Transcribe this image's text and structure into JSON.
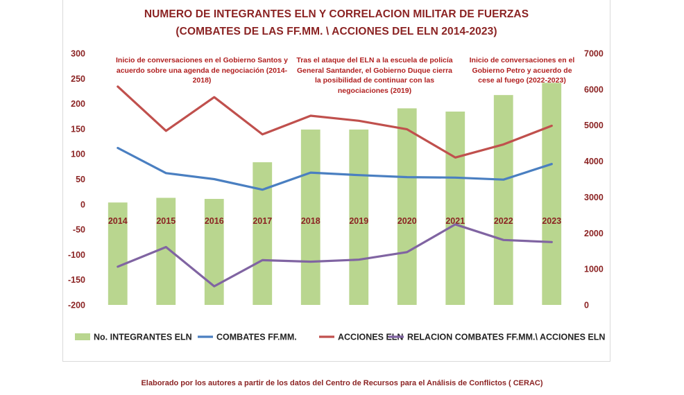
{
  "title_line1": "NUMERO DE INTEGRANTES ELN Y CORRELACION MILITAR DE FUERZAS",
  "title_line2": "(COMBATES DE LAS FF.MM. \\ ACCIONES DEL ELN 2014-2023)",
  "annotations": {
    "a1": "Inicio de conversaciones en el Gobierno Santos  y acuerdo sobre una agenda de negociación (2014-2018)",
    "a2": "Tras el ataque del ELN a la escuela de policía General Santander, el Gobierno Duque cierra la posibilidad de continuar con las negociaciones (2019)",
    "a3": "Inicio de conversaciones en el Gobierno Petro y acuerdo de cese al fuego (2022-2023)"
  },
  "source": "Elaborado por los autores a partir de los datos del Centro de Recursos para el Análisis de Conflictos ( CERAC)",
  "chart_data": {
    "type": "bar",
    "categories": [
      "2014",
      "2015",
      "2016",
      "2017",
      "2018",
      "2019",
      "2020",
      "2021",
      "2022",
      "2023"
    ],
    "y_left": {
      "min": -200,
      "max": 300,
      "step": 50,
      "ticks": [
        "300",
        "250",
        "200",
        "150",
        "100",
        "50",
        "0",
        "-50",
        "-100",
        "-150",
        "-200"
      ]
    },
    "y_right": {
      "min": 0,
      "max": 7000,
      "step": 1000,
      "ticks": [
        "7000",
        "6000",
        "5000",
        "4000",
        "3000",
        "2000",
        "1000",
        "0"
      ]
    },
    "series": [
      {
        "name": "No. INTEGRANTES ELN",
        "type": "bar",
        "axis": "right",
        "color": "#b9d68f",
        "values": [
          2850,
          2980,
          2950,
          3970,
          4880,
          4880,
          5470,
          5380,
          5840,
          6180
        ]
      },
      {
        "name": "COMBATES FF.MM.",
        "type": "line",
        "axis": "left",
        "color": "#4a7fc1",
        "values": [
          112,
          62,
          50,
          29,
          63,
          58,
          54,
          53,
          49,
          80
        ]
      },
      {
        "name": "ACCIONES ELN",
        "type": "line",
        "axis": "left",
        "color": "#c0504d",
        "values": [
          234,
          146,
          213,
          139,
          176,
          166,
          149,
          93,
          119,
          156
        ]
      },
      {
        "name": "RELACION COMBATES FF.MM.\\ ACCIONES ELN",
        "type": "line",
        "axis": "left",
        "color": "#8064a2",
        "values": [
          -124,
          -85,
          -163,
          -111,
          -114,
          -110,
          -95,
          -40,
          -71,
          -75
        ]
      }
    ],
    "legend_position": "bottom",
    "grid": false
  }
}
